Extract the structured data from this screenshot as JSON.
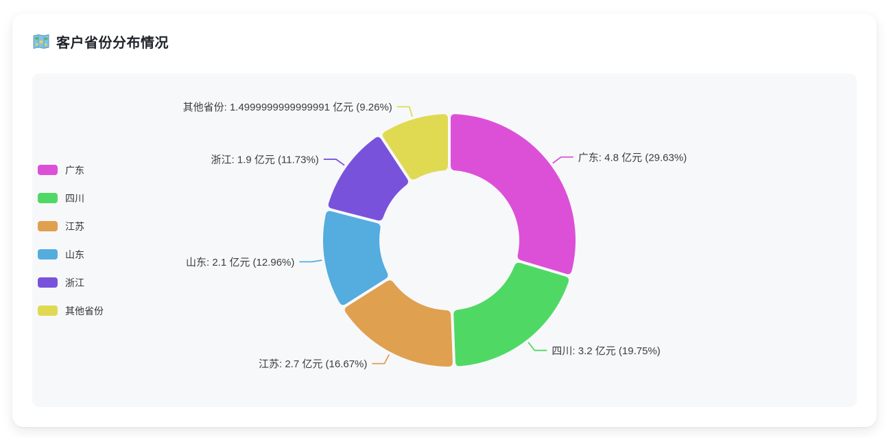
{
  "page": {
    "title": "客户省份分布情况"
  },
  "panel": {
    "background": "#f7f8fa"
  },
  "chart_data": {
    "type": "pie",
    "subtype": "donut",
    "title": "客户省份分布情况",
    "unit": "亿元",
    "legend_position": "left",
    "start_angle_deg": 0,
    "direction": "clockwise",
    "inner_radius_ratio": 0.54,
    "categories": [
      "广东",
      "四川",
      "江苏",
      "山东",
      "浙江",
      "其他省份"
    ],
    "values": [
      4.8,
      3.2,
      2.7,
      2.1,
      1.9,
      1.4999999999999991
    ],
    "percentages": [
      "29.63%",
      "19.75%",
      "16.67%",
      "12.96%",
      "11.73%",
      "9.26%"
    ],
    "labels": [
      "广东: 4.8 亿元 (29.63%)",
      "四川: 3.2 亿元 (19.75%)",
      "江苏: 2.7 亿元 (16.67%)",
      "山东: 2.1 亿元 (12.96%)",
      "浙江: 1.9 亿元 (11.73%)",
      "其他省份: 1.4999999999999991 亿元 (9.26%)"
    ],
    "colors": [
      "#DC50D8",
      "#4FD964",
      "#DFA04F",
      "#54ACDF",
      "#7952DC",
      "#E0DA52"
    ]
  }
}
